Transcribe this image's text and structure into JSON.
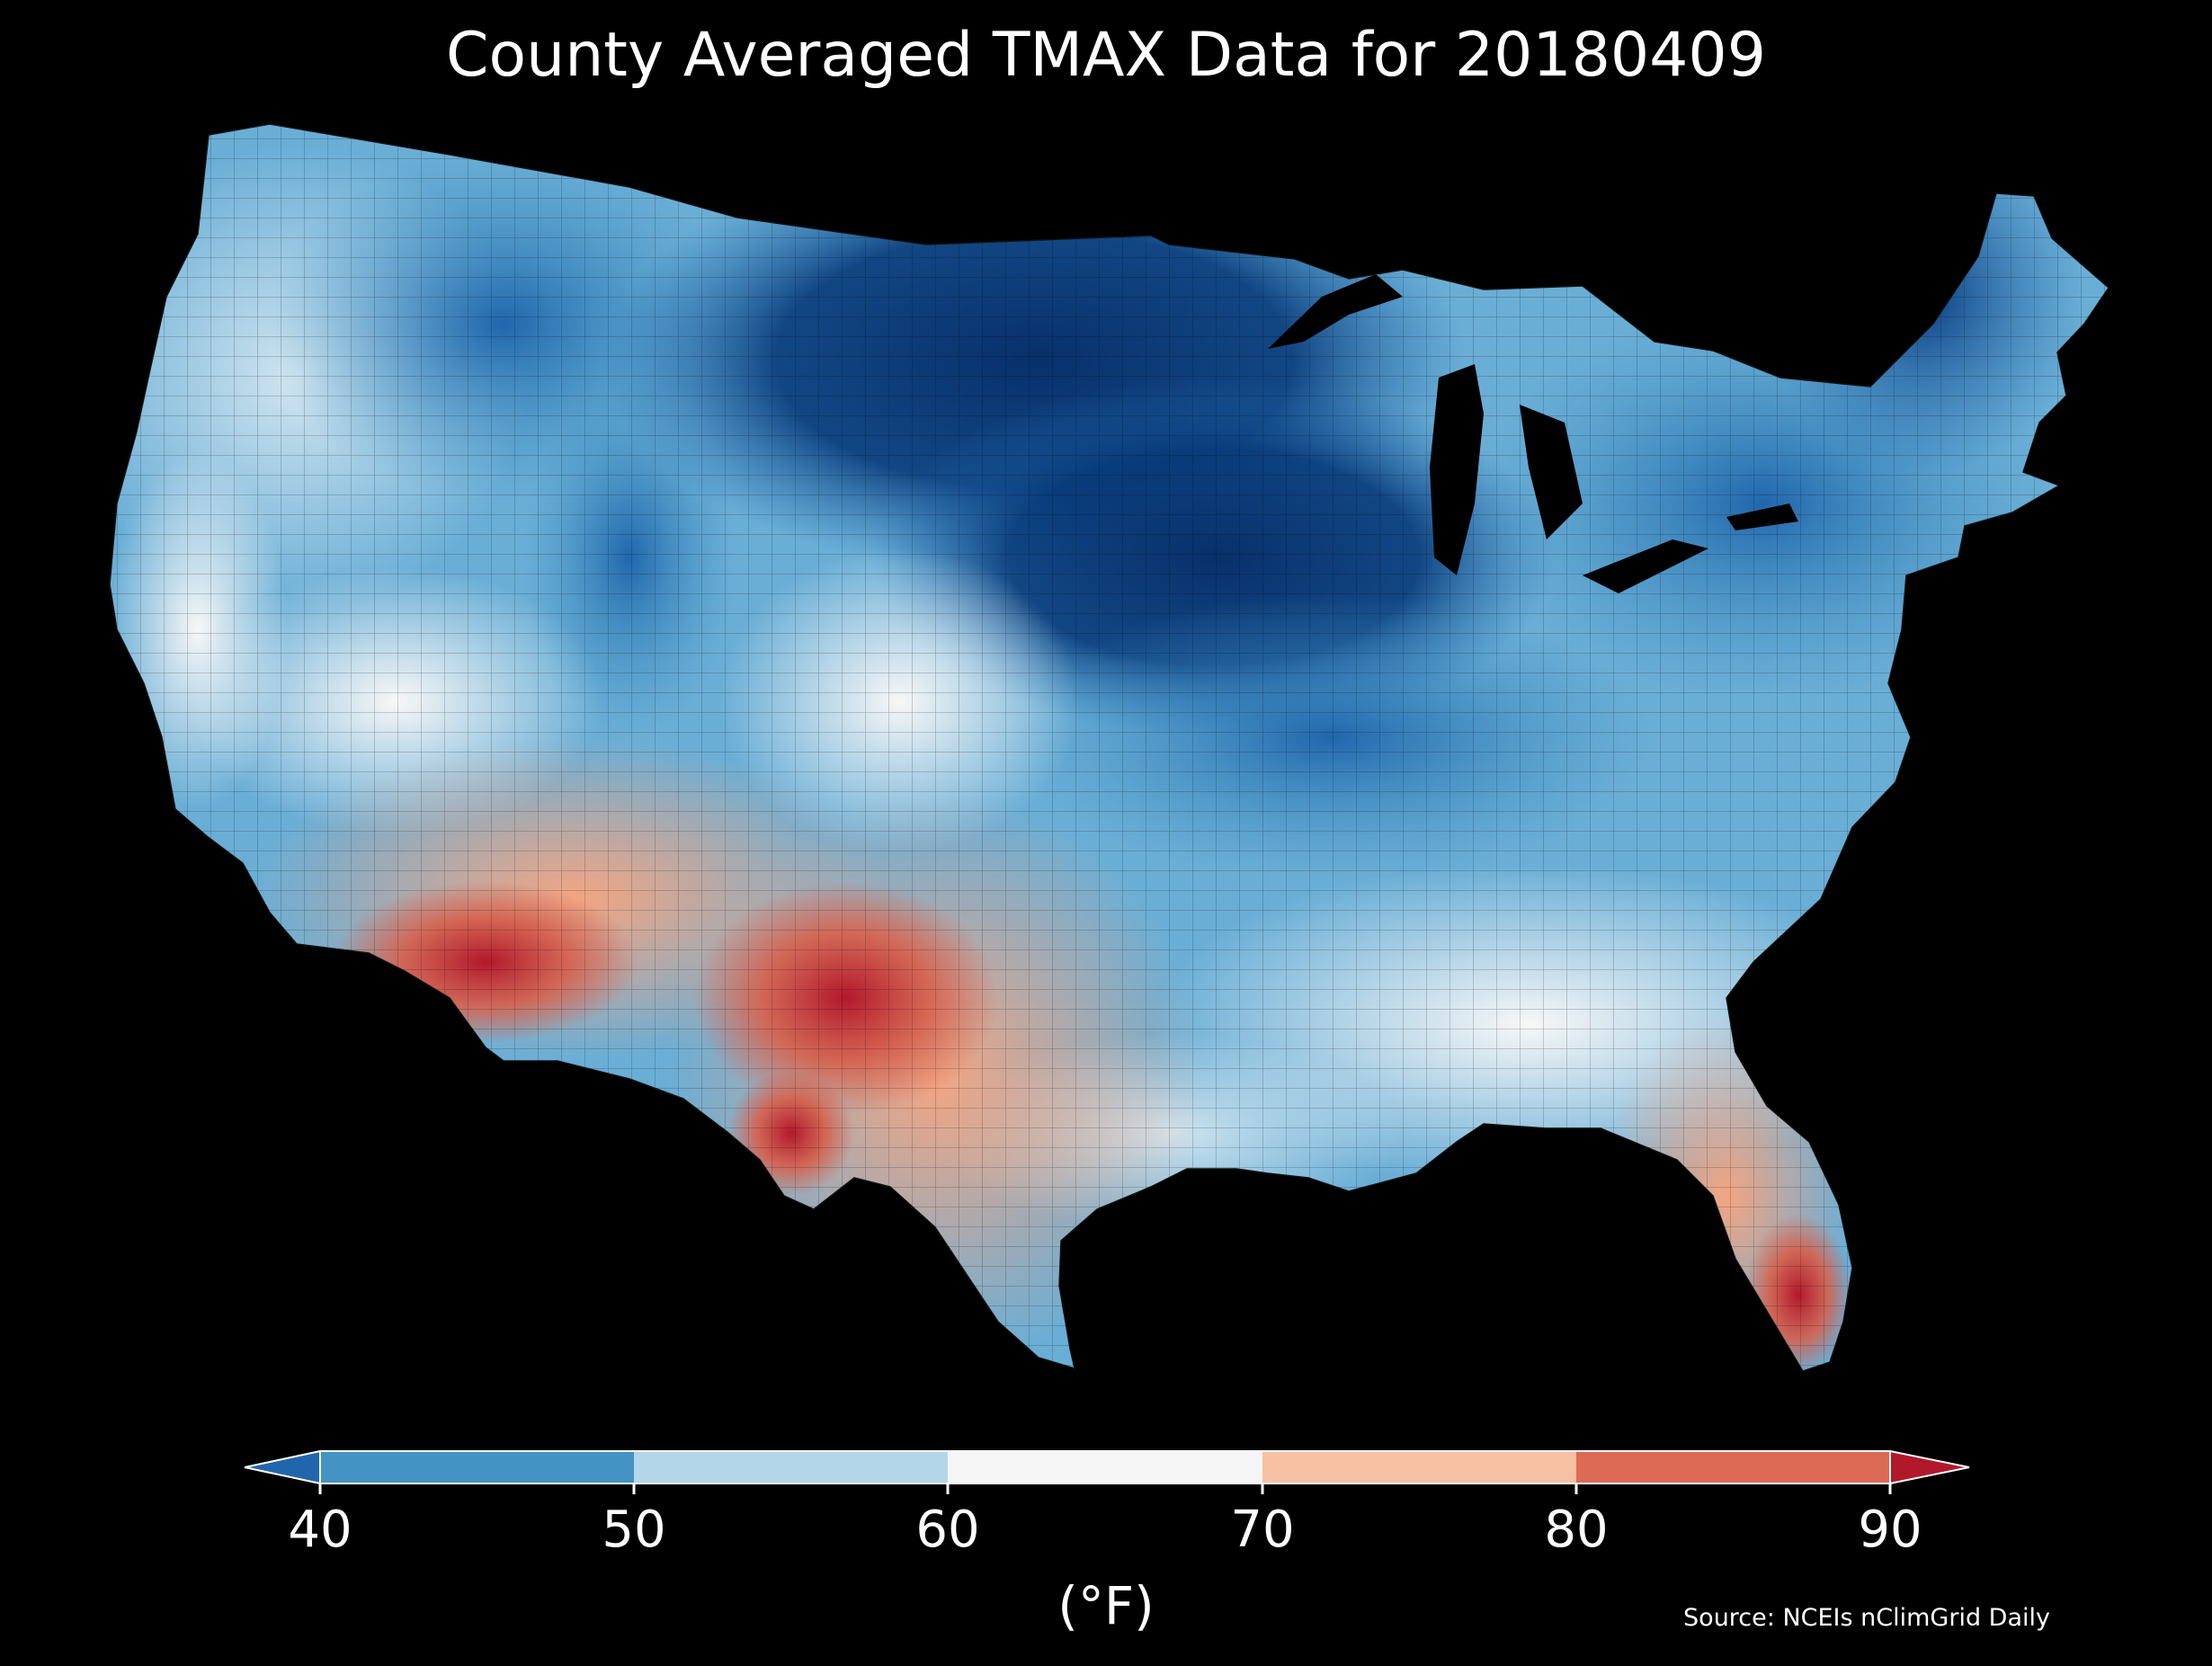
{
  "title": "County Averaged TMAX Data for 20180409",
  "colorbar": {
    "ticks": [
      "40",
      "50",
      "60",
      "70",
      "80",
      "90"
    ],
    "unit": "(°F)",
    "colors": {
      "below_40": "#2166ac",
      "40_50": "#4393c3",
      "50_60": "#b4d6e9",
      "60_70": "#f5f5f5",
      "70_80": "#f8c0a3",
      "80_90": "#dd6a55",
      "above_90": "#b2182b"
    }
  },
  "source": "Source: NCEIs nClimGrid Daily"
}
